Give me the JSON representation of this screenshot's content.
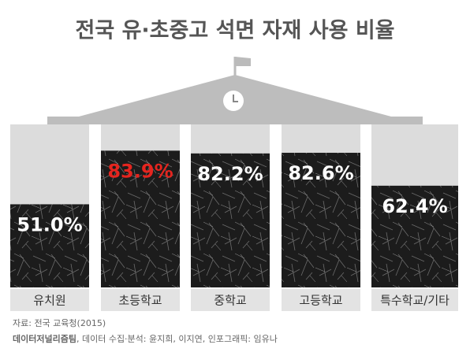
{
  "chart_data": {
    "type": "bar",
    "title": "전국 유·초중고 석면 자재 사용 비율",
    "categories": [
      "유치원",
      "초등학교",
      "중학교",
      "고등학교",
      "특수학교/기타"
    ],
    "values": [
      51.0,
      83.9,
      82.2,
      82.6,
      62.4
    ],
    "value_labels": [
      "51.0%",
      "83.9%",
      "82.2%",
      "82.6%",
      "62.4%"
    ],
    "value_label_colors": [
      "#ffffff",
      "#e5251f",
      "#ffffff",
      "#ffffff",
      "#ffffff"
    ],
    "ylim": [
      0,
      100
    ],
    "source": "자료: 전국 교육청(2015)",
    "credit_team": "데이터저널리즘팀",
    "credit": ", 데이터 수집·분석: 윤지희, 이지연, 인포그래픽: 임유나"
  }
}
